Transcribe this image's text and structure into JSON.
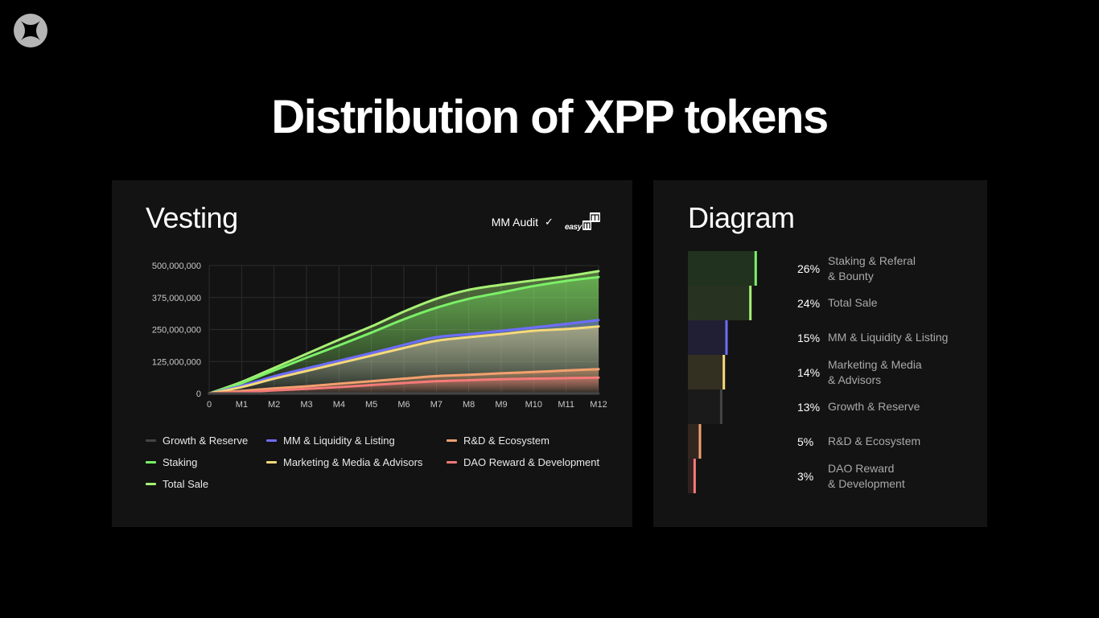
{
  "title": "Distribution of XPP tokens",
  "vesting": {
    "title": "Vesting",
    "audit_label": "MM Audit",
    "audit_check": "✓",
    "audit_brand": "easy"
  },
  "diagram": {
    "title": "Diagram",
    "items": [
      {
        "pct": 26,
        "label": "26%",
        "name": "Staking & Referal\n& Bounty",
        "color": "#7bf068"
      },
      {
        "pct": 24,
        "label": "24%",
        "name": "Total Sale",
        "color": "#a7f075"
      },
      {
        "pct": 15,
        "label": "15%",
        "name": "MM & Liquidity & Listing",
        "color": "#6e6dff"
      },
      {
        "pct": 14,
        "label": "14%",
        "name": "Marketing & Media\n& Advisors",
        "color": "#f6d97a"
      },
      {
        "pct": 13,
        "label": "13%",
        "name": "Growth & Reserve",
        "color": "#444444"
      },
      {
        "pct": 5,
        "label": "5%",
        "name": "R&D & Ecosystem",
        "color": "#f4a06e"
      },
      {
        "pct": 3,
        "label": "3%",
        "name": "DAO Reward\n& Development",
        "color": "#f47a78"
      }
    ]
  },
  "chart_data": {
    "type": "area",
    "x": [
      "0",
      "M1",
      "M2",
      "M3",
      "M4",
      "M5",
      "M6",
      "M7",
      "M8",
      "M9",
      "M10",
      "M11",
      "M12"
    ],
    "ylim": [
      0,
      500000000
    ],
    "yticks": [
      0,
      125000000,
      250000000,
      375000000,
      500000000
    ],
    "ytick_labels": [
      "0",
      "125,000,000",
      "250,000,000",
      "375,000,000",
      "500,000,000"
    ],
    "grid": true,
    "legend_position": "bottom",
    "series": [
      {
        "name": "Growth & Reserve",
        "color": "#444444",
        "values": [
          0,
          0,
          0,
          0,
          0,
          0,
          0,
          0,
          0,
          0,
          0,
          0,
          0
        ]
      },
      {
        "name": "MM & Liquidity & Listing",
        "color": "#6e6dff",
        "values": [
          0,
          30000000,
          67000000,
          98000000,
          128000000,
          158000000,
          190000000,
          220000000,
          232000000,
          245000000,
          258000000,
          272000000,
          287000000
        ]
      },
      {
        "name": "R&D & Ecosystem",
        "color": "#f4a06e",
        "values": [
          0,
          10000000,
          20000000,
          28000000,
          38000000,
          48000000,
          58000000,
          68000000,
          73000000,
          79000000,
          84000000,
          90000000,
          95000000
        ]
      },
      {
        "name": "Staking",
        "color": "#7bf068",
        "values": [
          0,
          40000000,
          90000000,
          140000000,
          188000000,
          238000000,
          290000000,
          335000000,
          370000000,
          395000000,
          420000000,
          440000000,
          455000000
        ]
      },
      {
        "name": "Marketing & Media & Advisors",
        "color": "#f6d97a",
        "values": [
          0,
          25000000,
          58000000,
          88000000,
          118000000,
          148000000,
          178000000,
          206000000,
          220000000,
          232000000,
          245000000,
          252000000,
          262000000
        ]
      },
      {
        "name": "DAO Reward  & Development",
        "color": "#f47a78",
        "values": [
          0,
          5000000,
          12000000,
          18000000,
          25000000,
          33000000,
          41000000,
          48000000,
          52000000,
          56000000,
          58000000,
          60000000,
          62000000
        ]
      },
      {
        "name": "Total Sale",
        "color": "#a7f075",
        "values": [
          0,
          45000000,
          100000000,
          155000000,
          210000000,
          262000000,
          320000000,
          370000000,
          405000000,
          425000000,
          442000000,
          458000000,
          478000000
        ]
      }
    ]
  }
}
